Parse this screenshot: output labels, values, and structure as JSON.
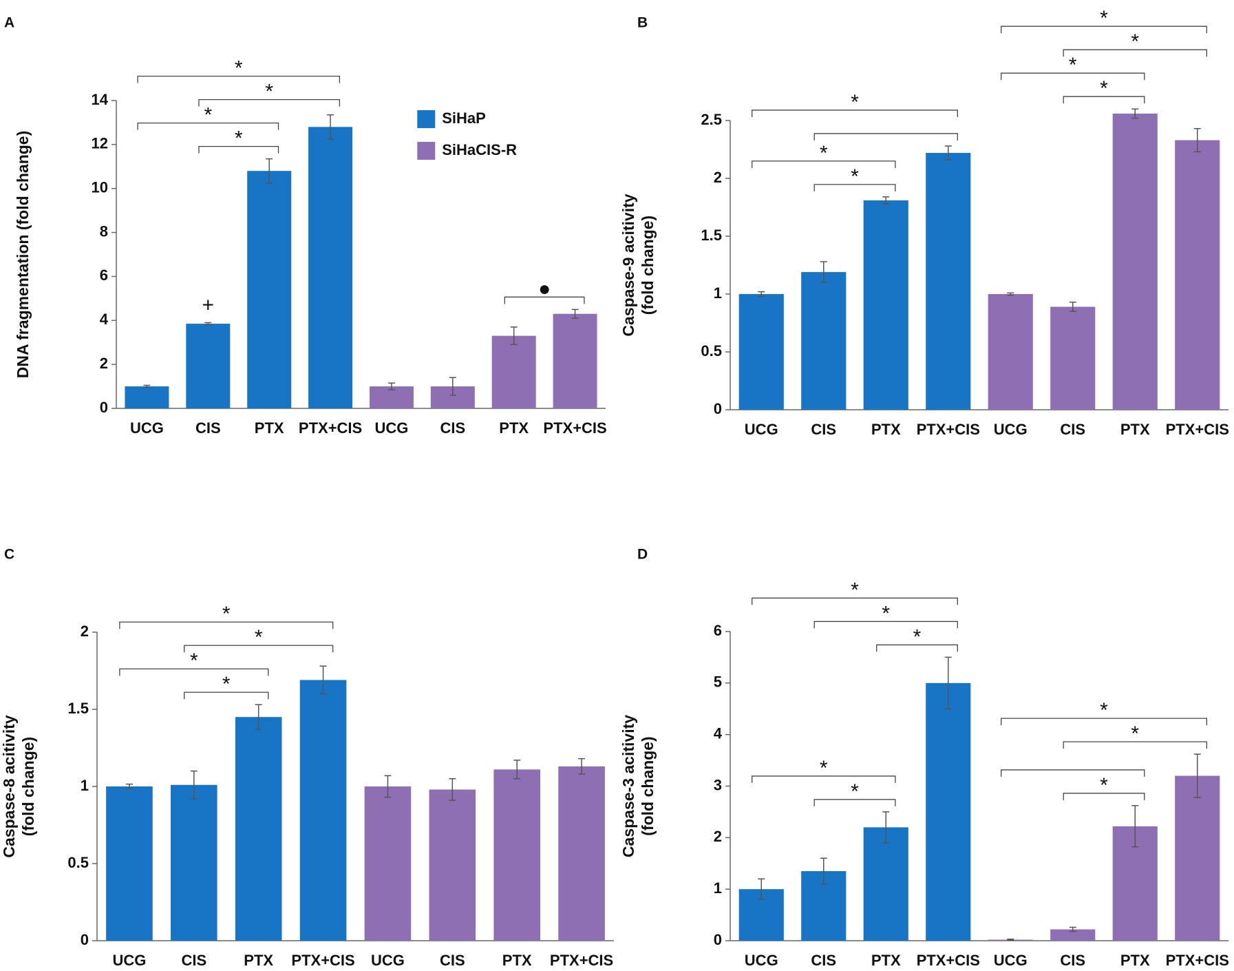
{
  "chart_data": [
    {
      "type": "bar",
      "panel": "A",
      "ylabel": [
        "DNA fragmentation (fold change)"
      ],
      "categories": [
        "UCG",
        "CIS",
        "PTX",
        "PTX+CIS"
      ],
      "series": [
        {
          "name": "SiHaP",
          "color": "#1874c4",
          "values": [
            1.0,
            3.85,
            10.8,
            12.8
          ],
          "errors": [
            0.05,
            0.05,
            0.55,
            0.55
          ]
        },
        {
          "name": "SiHaCIS-R",
          "color": "#8f6fb3",
          "values": [
            1.0,
            1.0,
            3.3,
            4.3
          ],
          "errors": [
            0.15,
            0.4,
            0.4,
            0.2
          ]
        }
      ],
      "ylim": [
        0,
        14
      ],
      "yticks": [
        0,
        2,
        4,
        6,
        8,
        10,
        12,
        14
      ],
      "brackets": [
        {
          "from": 1,
          "to": 2,
          "label": "*"
        },
        {
          "from": 0,
          "to": 2,
          "label": "*"
        },
        {
          "from": 1,
          "to": 3,
          "label": "*"
        },
        {
          "from": 0,
          "to": 3,
          "label": "*"
        },
        {
          "from": 6,
          "to": 7,
          "label": "●"
        }
      ],
      "bar_labels": [
        {
          "at": 1,
          "label": "+"
        }
      ]
    },
    {
      "type": "bar",
      "panel": "B",
      "ylabel": [
        "Caspase-9 acitivity",
        "(fold change)"
      ],
      "categories": [
        "UCG",
        "CIS",
        "PTX",
        "PTX+CIS"
      ],
      "series": [
        {
          "color": "#1874c4",
          "values": [
            1.0,
            1.19,
            1.81,
            2.22
          ],
          "errors": [
            0.02,
            0.09,
            0.03,
            0.06
          ]
        },
        {
          "color": "#8f6fb3",
          "values": [
            1.0,
            0.89,
            2.56,
            2.33
          ],
          "errors": [
            0.01,
            0.04,
            0.04,
            0.1
          ]
        }
      ],
      "ylim": [
        0,
        2.5
      ],
      "yticks": [
        0,
        0.5,
        1,
        1.5,
        2,
        2.5
      ],
      "brackets": [
        {
          "from": 1,
          "to": 2,
          "label": "*"
        },
        {
          "from": 0,
          "to": 2,
          "label": "*"
        },
        {
          "from": 1,
          "to": 3
        },
        {
          "from": 0,
          "to": 3,
          "label": "*"
        },
        {
          "from": 5,
          "to": 6,
          "label": "*"
        },
        {
          "from": 4,
          "to": 6,
          "label": "*"
        },
        {
          "from": 5,
          "to": 7,
          "label": "*"
        },
        {
          "from": 4,
          "to": 7,
          "label": "*"
        }
      ]
    },
    {
      "type": "bar",
      "panel": "C",
      "ylabel": [
        "Caspase-8 acitivity",
        "(fold change)"
      ],
      "categories": [
        "UCG",
        "CIS",
        "PTX",
        "PTX+CIS"
      ],
      "series": [
        {
          "color": "#1874c4",
          "values": [
            1.0,
            1.01,
            1.45,
            1.69
          ],
          "errors": [
            0.015,
            0.09,
            0.08,
            0.09
          ]
        },
        {
          "color": "#8f6fb3",
          "values": [
            1.0,
            0.98,
            1.11,
            1.13
          ],
          "errors": [
            0.07,
            0.07,
            0.06,
            0.05
          ]
        }
      ],
      "ylim": [
        0,
        2
      ],
      "yticks": [
        0,
        0.5,
        1,
        1.5,
        2
      ],
      "brackets": [
        {
          "from": 1,
          "to": 2,
          "label": "*"
        },
        {
          "from": 0,
          "to": 2,
          "label": "*"
        },
        {
          "from": 1,
          "to": 3,
          "label": "*"
        },
        {
          "from": 0,
          "to": 3,
          "label": "*"
        }
      ]
    },
    {
      "type": "bar",
      "panel": "D",
      "ylabel": [
        "Caspase-3 acitivity",
        "(fold change)"
      ],
      "categories": [
        "UCG",
        "CIS",
        "PTX",
        "PTX+CIS"
      ],
      "series": [
        {
          "color": "#1874c4",
          "values": [
            1.0,
            1.35,
            2.2,
            5.0
          ],
          "errors": [
            0.2,
            0.25,
            0.3,
            0.5
          ]
        },
        {
          "color": "#8f6fb3",
          "values": [
            0.02,
            0.22,
            2.22,
            3.2
          ],
          "errors": [
            0.01,
            0.04,
            0.4,
            0.42
          ]
        }
      ],
      "ylim": [
        0,
        6
      ],
      "yticks": [
        0,
        1,
        2,
        3,
        4,
        5,
        6
      ],
      "brackets": [
        {
          "from": 1,
          "to": 2,
          "label": "*"
        },
        {
          "from": 0,
          "to": 2,
          "label": "*"
        },
        {
          "from": 2,
          "to": 3,
          "label": "*"
        },
        {
          "from": 1,
          "to": 3,
          "label": "*"
        },
        {
          "from": 0,
          "to": 3,
          "label": "*"
        },
        {
          "from": 5,
          "to": 6,
          "label": "*"
        },
        {
          "from": 4,
          "to": 6
        },
        {
          "from": 5,
          "to": 7,
          "label": "*"
        },
        {
          "from": 4,
          "to": 7,
          "label": "*"
        }
      ]
    }
  ]
}
